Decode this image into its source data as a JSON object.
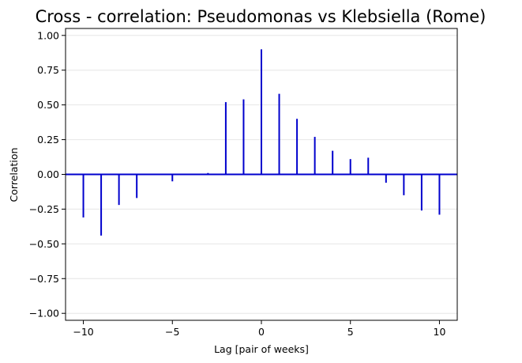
{
  "chart_data": {
    "type": "bar",
    "title": "Cross - correlation: Pseudomonas vs Klebsiella (Rome)",
    "xlabel": "Lag [pair of weeks]",
    "ylabel": "Correlation",
    "xlim": [
      -11,
      11
    ],
    "ylim": [
      -1.05,
      1.05
    ],
    "xticks": [
      -10,
      -5,
      0,
      5,
      10
    ],
    "xtick_labels": [
      "−10",
      "−5",
      "0",
      "5",
      "10"
    ],
    "yticks": [
      -1.0,
      -0.75,
      -0.5,
      -0.25,
      0.0,
      0.25,
      0.5,
      0.75,
      1.0
    ],
    "ytick_labels": [
      "−1.00",
      "−0.75",
      "−0.50",
      "−0.25",
      "0.00",
      "0.25",
      "0.50",
      "0.75",
      "1.00"
    ],
    "grid": "horizontal",
    "lags": [
      -10,
      -9,
      -8,
      -7,
      -6,
      -5,
      -4,
      -3,
      -2,
      -1,
      0,
      1,
      2,
      3,
      4,
      5,
      6,
      7,
      8,
      9,
      10
    ],
    "values": [
      -0.31,
      -0.44,
      -0.22,
      -0.17,
      0.0,
      -0.05,
      0.0,
      0.01,
      0.52,
      0.54,
      0.9,
      0.58,
      0.4,
      0.27,
      0.17,
      0.11,
      0.12,
      -0.06,
      -0.15,
      -0.26,
      -0.29
    ],
    "colors": {
      "stem": "#0000cd",
      "zero_line": "#0000cd",
      "grid": "#e6e6e6",
      "axes": "#000000"
    }
  }
}
